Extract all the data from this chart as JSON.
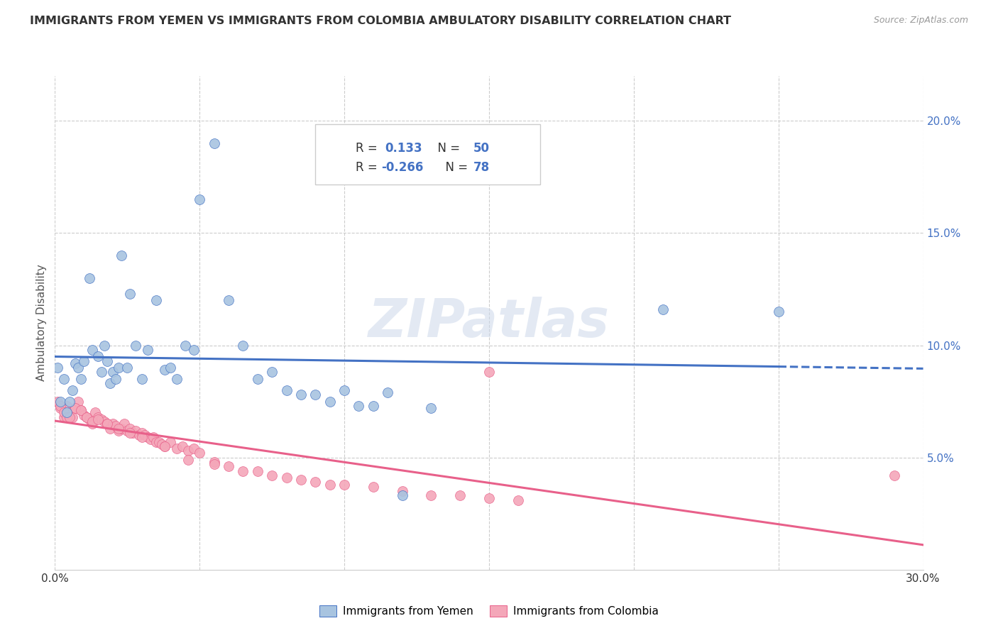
{
  "title": "IMMIGRANTS FROM YEMEN VS IMMIGRANTS FROM COLOMBIA AMBULATORY DISABILITY CORRELATION CHART",
  "source": "Source: ZipAtlas.com",
  "ylabel": "Ambulatory Disability",
  "xlim": [
    0.0,
    0.3
  ],
  "ylim": [
    0.0,
    0.22
  ],
  "yticks": [
    0.05,
    0.1,
    0.15,
    0.2
  ],
  "ytick_labels": [
    "5.0%",
    "10.0%",
    "15.0%",
    "20.0%"
  ],
  "xticks": [
    0.0,
    0.05,
    0.1,
    0.15,
    0.2,
    0.25,
    0.3
  ],
  "legend_R_yemen": "0.133",
  "legend_N_yemen": "50",
  "legend_R_colombia": "-0.266",
  "legend_N_colombia": "78",
  "color_yemen": "#a8c4e0",
  "color_colombia": "#f4a7b9",
  "line_color_yemen": "#4472c4",
  "line_color_colombia": "#e8608a",
  "watermark": "ZIPatlas",
  "yemen_x": [
    0.001,
    0.002,
    0.003,
    0.004,
    0.005,
    0.006,
    0.007,
    0.008,
    0.009,
    0.01,
    0.012,
    0.013,
    0.015,
    0.016,
    0.017,
    0.018,
    0.019,
    0.02,
    0.021,
    0.022,
    0.023,
    0.025,
    0.026,
    0.028,
    0.03,
    0.032,
    0.035,
    0.038,
    0.04,
    0.042,
    0.045,
    0.048,
    0.05,
    0.055,
    0.06,
    0.065,
    0.07,
    0.075,
    0.08,
    0.085,
    0.09,
    0.095,
    0.1,
    0.105,
    0.11,
    0.115,
    0.12,
    0.13,
    0.21,
    0.25
  ],
  "yemen_y": [
    0.09,
    0.075,
    0.085,
    0.07,
    0.075,
    0.08,
    0.092,
    0.09,
    0.085,
    0.093,
    0.13,
    0.098,
    0.095,
    0.088,
    0.1,
    0.093,
    0.083,
    0.088,
    0.085,
    0.09,
    0.14,
    0.09,
    0.123,
    0.1,
    0.085,
    0.098,
    0.12,
    0.089,
    0.09,
    0.085,
    0.1,
    0.098,
    0.165,
    0.19,
    0.12,
    0.1,
    0.085,
    0.088,
    0.08,
    0.078,
    0.078,
    0.075,
    0.08,
    0.073,
    0.073,
    0.079,
    0.033,
    0.072,
    0.116,
    0.115
  ],
  "colombia_x": [
    0.001,
    0.002,
    0.003,
    0.004,
    0.005,
    0.006,
    0.007,
    0.008,
    0.009,
    0.01,
    0.011,
    0.012,
    0.013,
    0.014,
    0.015,
    0.016,
    0.017,
    0.018,
    0.019,
    0.02,
    0.021,
    0.022,
    0.023,
    0.024,
    0.025,
    0.026,
    0.027,
    0.028,
    0.029,
    0.03,
    0.031,
    0.032,
    0.033,
    0.034,
    0.035,
    0.036,
    0.037,
    0.038,
    0.04,
    0.042,
    0.044,
    0.046,
    0.048,
    0.05,
    0.055,
    0.06,
    0.065,
    0.07,
    0.075,
    0.08,
    0.085,
    0.09,
    0.095,
    0.1,
    0.11,
    0.12,
    0.13,
    0.14,
    0.15,
    0.16,
    0.002,
    0.003,
    0.004,
    0.005,
    0.007,
    0.009,
    0.011,
    0.013,
    0.015,
    0.018,
    0.022,
    0.026,
    0.03,
    0.038,
    0.046,
    0.055,
    0.15,
    0.29
  ],
  "colombia_y": [
    0.075,
    0.072,
    0.068,
    0.073,
    0.07,
    0.068,
    0.072,
    0.075,
    0.071,
    0.069,
    0.068,
    0.067,
    0.065,
    0.07,
    0.068,
    0.067,
    0.066,
    0.065,
    0.063,
    0.065,
    0.064,
    0.062,
    0.063,
    0.065,
    0.062,
    0.063,
    0.061,
    0.062,
    0.06,
    0.061,
    0.06,
    0.059,
    0.058,
    0.059,
    0.057,
    0.057,
    0.056,
    0.055,
    0.057,
    0.054,
    0.055,
    0.053,
    0.054,
    0.052,
    0.048,
    0.046,
    0.044,
    0.044,
    0.042,
    0.041,
    0.04,
    0.039,
    0.038,
    0.038,
    0.037,
    0.035,
    0.033,
    0.033,
    0.032,
    0.031,
    0.073,
    0.07,
    0.068,
    0.068,
    0.072,
    0.071,
    0.068,
    0.066,
    0.067,
    0.065,
    0.063,
    0.061,
    0.059,
    0.055,
    0.049,
    0.047,
    0.088,
    0.042
  ]
}
